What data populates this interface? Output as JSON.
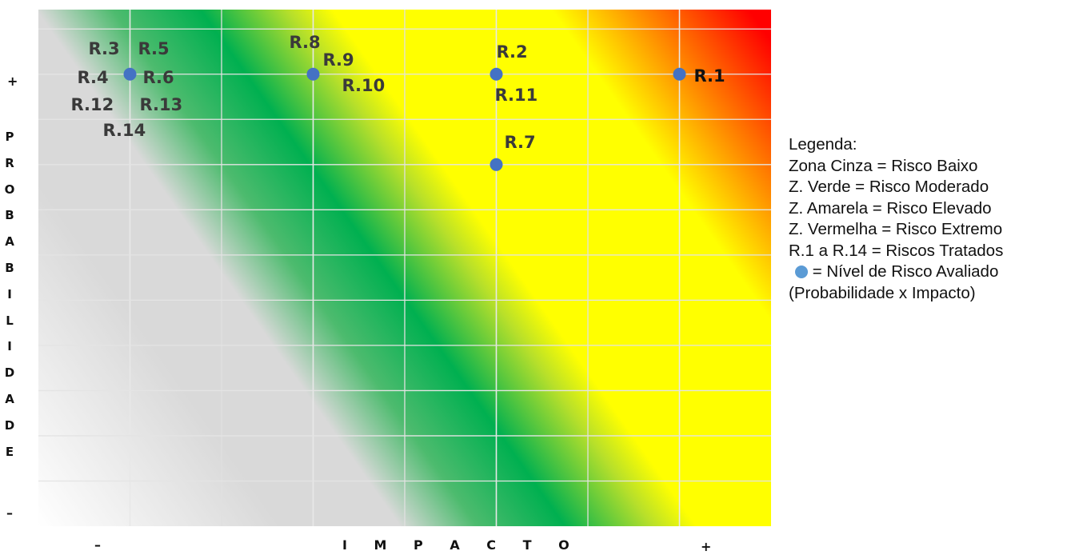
{
  "chart_data": {
    "type": "scatter",
    "title": "",
    "xlabel": "I M P A C T O",
    "ylabel": "PROBABILIDADE",
    "x_min_label": "–",
    "x_max_label": "+",
    "y_min_label": "–",
    "y_max_label": "+",
    "xlim": [
      0,
      8
    ],
    "ylim": [
      0,
      8
    ],
    "grid": true,
    "zones": [
      {
        "name": "Zona Cinza",
        "color": "#d9d9d9"
      },
      {
        "name": "Zona Verde",
        "color": "#00b050"
      },
      {
        "name": "Zona Amarela",
        "color": "#ffff00"
      },
      {
        "name": "Zona Vermelha",
        "color": "#ff0000"
      }
    ],
    "point_color": "#4472c4",
    "points": [
      {
        "x": 1,
        "y": 7,
        "labels": [
          "R.3",
          "R.5",
          "R.4",
          "R.6",
          "R.12",
          "R.13",
          "R.14"
        ]
      },
      {
        "x": 3,
        "y": 7,
        "labels": [
          "R.8",
          "R.9",
          "R.10"
        ]
      },
      {
        "x": 5,
        "y": 7,
        "labels": [
          "R.2",
          "R.11"
        ]
      },
      {
        "x": 7,
        "y": 7,
        "labels": [
          "R.1"
        ]
      },
      {
        "x": 5,
        "y": 5.6,
        "labels": [
          "R.7"
        ]
      }
    ]
  },
  "legend": {
    "title": "Legenda:",
    "items": [
      "Zona Cinza = Risco Baixo",
      "Z. Verde = Risco Moderado",
      "Z. Amarela = Risco Elevado",
      "Z. Vermelha = Risco Extremo",
      "R.1 a R.14 = Riscos Tratados"
    ],
    "dot_item": "= Nível de Risco Avaliado",
    "dot_color": "#5b9bd5",
    "last_item": "(Probabilidade x Impacto)"
  }
}
